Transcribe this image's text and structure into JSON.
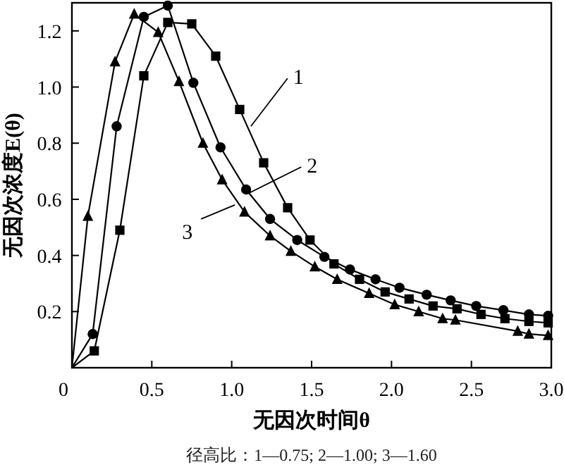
{
  "chart_data": {
    "type": "line",
    "xlabel": "无因次时间θ",
    "ylabel": "无因次浓度E(θ)",
    "xlim": [
      0,
      3
    ],
    "ylim": [
      0,
      1.3
    ],
    "xticks": [
      0,
      0.5,
      {
        "value": 1,
        "label": "1.0"
      },
      1.5,
      {
        "value": 2,
        "label": "2.0"
      },
      2.5,
      {
        "value": 3,
        "label": "3.0"
      }
    ],
    "yticks": [
      {
        "value": 0,
        "label": null
      },
      0.2,
      0.4,
      0.6,
      0.8,
      {
        "value": 1,
        "label": "1.0"
      },
      1.2
    ],
    "grid": false,
    "line_style": "solid",
    "series": [
      {
        "color": "#000000",
        "marker": "square",
        "x": [
          0,
          0.14,
          0.3,
          0.45,
          0.6,
          0.75,
          0.9,
          1.05,
          1.2,
          1.35,
          1.49,
          1.64,
          1.8,
          1.96,
          2.11,
          2.26,
          2.41,
          2.56,
          2.71,
          2.86,
          2.98
        ],
        "values": [
          0,
          0.06,
          0.49,
          1.04,
          1.23,
          1.225,
          1.11,
          0.92,
          0.73,
          0.57,
          0.455,
          0.37,
          0.315,
          0.27,
          0.245,
          0.22,
          0.21,
          0.19,
          0.175,
          0.165,
          0.16
        ]
      },
      {
        "color": "#000000",
        "marker": "circle",
        "x": [
          0,
          0.13,
          0.28,
          0.45,
          0.6,
          0.76,
          0.93,
          1.09,
          1.24,
          1.41,
          1.58,
          1.74,
          1.9,
          2.05,
          2.22,
          2.37,
          2.53,
          2.7,
          2.86,
          2.98
        ],
        "values": [
          0,
          0.12,
          0.86,
          1.25,
          1.29,
          1.015,
          0.785,
          0.635,
          0.53,
          0.455,
          0.395,
          0.35,
          0.315,
          0.285,
          0.26,
          0.24,
          0.22,
          0.205,
          0.19,
          0.185
        ]
      },
      {
        "color": "#000000",
        "marker": "triangle",
        "x": [
          0,
          0.1,
          0.27,
          0.39,
          0.54,
          0.67,
          0.82,
          0.94,
          1.08,
          1.24,
          1.37,
          1.52,
          1.66,
          1.86,
          2.02,
          2.17,
          2.32,
          2.4,
          2.79,
          2.86,
          2.98
        ],
        "values": [
          0,
          0.54,
          1.09,
          1.26,
          1.195,
          1.02,
          0.8,
          0.67,
          0.555,
          0.47,
          0.415,
          0.36,
          0.315,
          0.265,
          0.225,
          0.2,
          0.175,
          0.17,
          0.13,
          0.12,
          0.115
        ]
      }
    ],
    "annotations": [
      {
        "text": "1",
        "x": 1.12,
        "y": 0.86
      },
      {
        "text": "2",
        "x": 1.1,
        "y": 0.62
      },
      {
        "text": "3",
        "x": 1.02,
        "y": 0.58
      },
      "径高比：1—0.75; 2—1.00; 3—1.60"
    ]
  }
}
